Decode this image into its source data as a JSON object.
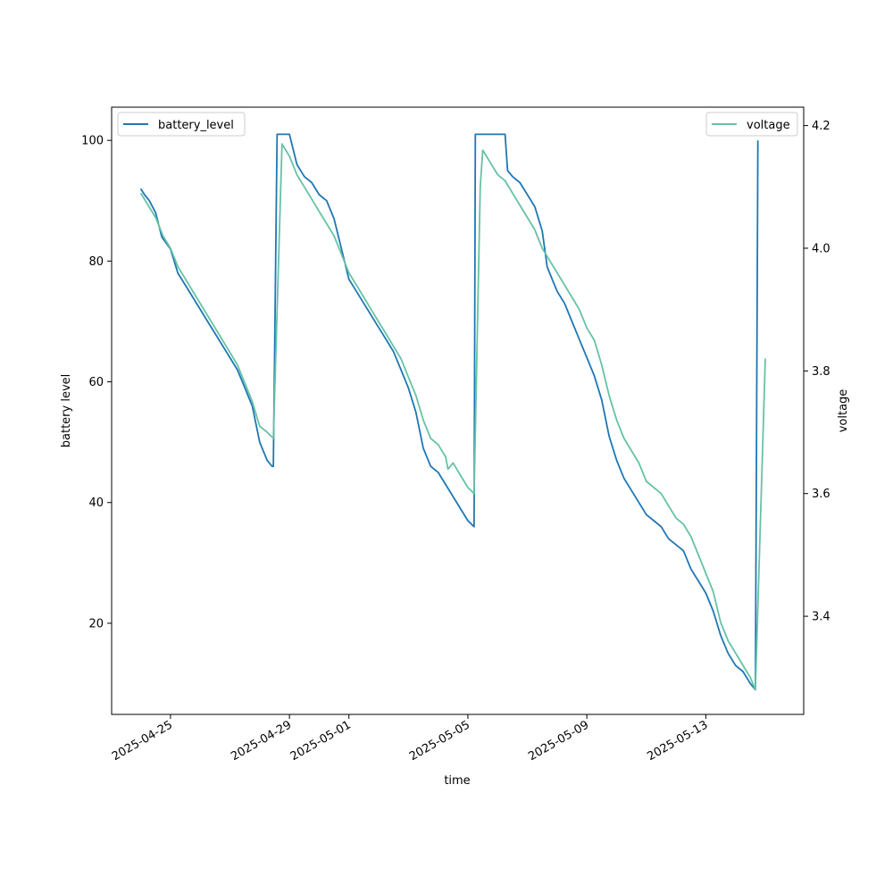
{
  "chart_data": {
    "type": "line",
    "x_axis": {
      "label": "time",
      "ticks": [
        "2025-04-25",
        "2025-04-29",
        "2025-05-01",
        "2025-05-05",
        "2025-05-09",
        "2025-05-13"
      ],
      "range": [
        "2025-04-23T00:30",
        "2025-05-16T07:00"
      ]
    },
    "y_axis_left": {
      "label": "battery level",
      "range": [
        4.9,
        105.5
      ],
      "ticks": [
        20,
        40,
        60,
        80,
        100
      ]
    },
    "y_axis_right": {
      "label": "voltage",
      "range": [
        3.24,
        4.23
      ],
      "ticks": [
        3.4,
        3.6,
        3.8,
        4.0,
        4.2
      ]
    },
    "legend": [
      {
        "label": "battery_level",
        "placement": "upper left",
        "color": "#1f77b4"
      },
      {
        "label": "voltage",
        "placement": "upper right",
        "color": "#66c2a5"
      }
    ],
    "grid": false,
    "series": [
      {
        "name": "battery_level",
        "axis": "left",
        "color": "#1f77b4",
        "points": [
          [
            "2025-04-24T00:00",
            92
          ],
          [
            "2025-04-24T03:00",
            91
          ],
          [
            "2025-04-24T07:00",
            90
          ],
          [
            "2025-04-24T12:00",
            88
          ],
          [
            "2025-04-24T17:00",
            84
          ],
          [
            "2025-04-25T00:00",
            82
          ],
          [
            "2025-04-25T06:00",
            78
          ],
          [
            "2025-04-25T12:00",
            76
          ],
          [
            "2025-04-25T18:00",
            74
          ],
          [
            "2025-04-26T00:00",
            72
          ],
          [
            "2025-04-26T06:00",
            70
          ],
          [
            "2025-04-26T12:00",
            68
          ],
          [
            "2025-04-26T18:00",
            66
          ],
          [
            "2025-04-27T00:00",
            64
          ],
          [
            "2025-04-27T06:00",
            62
          ],
          [
            "2025-04-27T12:00",
            59
          ],
          [
            "2025-04-27T18:00",
            56
          ],
          [
            "2025-04-28T00:00",
            50
          ],
          [
            "2025-04-28T06:00",
            47
          ],
          [
            "2025-04-28T10:00",
            46
          ],
          [
            "2025-04-28T11:00",
            46
          ],
          [
            "2025-04-28T14:00",
            101
          ],
          [
            "2025-04-28T17:00",
            101
          ],
          [
            "2025-04-29T00:00",
            101
          ],
          [
            "2025-04-29T06:00",
            96
          ],
          [
            "2025-04-29T12:00",
            94
          ],
          [
            "2025-04-29T18:00",
            93
          ],
          [
            "2025-04-30T00:00",
            91
          ],
          [
            "2025-04-30T06:00",
            90
          ],
          [
            "2025-04-30T12:00",
            87
          ],
          [
            "2025-04-30T18:00",
            82
          ],
          [
            "2025-05-01T00:00",
            77
          ],
          [
            "2025-05-01T06:00",
            75
          ],
          [
            "2025-05-01T12:00",
            73
          ],
          [
            "2025-05-01T18:00",
            71
          ],
          [
            "2025-05-02T00:00",
            69
          ],
          [
            "2025-05-02T06:00",
            67
          ],
          [
            "2025-05-02T12:00",
            65
          ],
          [
            "2025-05-02T18:00",
            62
          ],
          [
            "2025-05-03T00:00",
            59
          ],
          [
            "2025-05-03T06:00",
            55
          ],
          [
            "2025-05-03T12:00",
            49
          ],
          [
            "2025-05-03T18:00",
            46
          ],
          [
            "2025-05-04T00:00",
            45
          ],
          [
            "2025-05-04T06:00",
            43
          ],
          [
            "2025-05-04T12:00",
            41
          ],
          [
            "2025-05-04T18:00",
            39
          ],
          [
            "2025-05-05T00:00",
            37
          ],
          [
            "2025-05-05T05:00",
            36
          ],
          [
            "2025-05-05T06:00",
            101
          ],
          [
            "2025-05-05T18:00",
            101
          ],
          [
            "2025-05-06T06:00",
            101
          ],
          [
            "2025-05-06T08:00",
            95
          ],
          [
            "2025-05-06T12:00",
            94
          ],
          [
            "2025-05-06T18:00",
            93
          ],
          [
            "2025-05-07T00:00",
            91
          ],
          [
            "2025-05-07T06:00",
            89
          ],
          [
            "2025-05-07T12:00",
            85
          ],
          [
            "2025-05-07T16:00",
            79
          ],
          [
            "2025-05-07T20:00",
            77
          ],
          [
            "2025-05-08T00:00",
            75
          ],
          [
            "2025-05-08T06:00",
            73
          ],
          [
            "2025-05-08T12:00",
            70
          ],
          [
            "2025-05-08T18:00",
            67
          ],
          [
            "2025-05-09T00:00",
            64
          ],
          [
            "2025-05-09T06:00",
            61
          ],
          [
            "2025-05-09T12:00",
            57
          ],
          [
            "2025-05-09T18:00",
            51
          ],
          [
            "2025-05-10T00:00",
            47
          ],
          [
            "2025-05-10T06:00",
            44
          ],
          [
            "2025-05-10T12:00",
            42
          ],
          [
            "2025-05-10T18:00",
            40
          ],
          [
            "2025-05-11T00:00",
            38
          ],
          [
            "2025-05-11T06:00",
            37
          ],
          [
            "2025-05-11T12:00",
            36
          ],
          [
            "2025-05-11T18:00",
            34
          ],
          [
            "2025-05-12T00:00",
            33
          ],
          [
            "2025-05-12T06:00",
            32
          ],
          [
            "2025-05-12T12:00",
            29
          ],
          [
            "2025-05-12T18:00",
            27
          ],
          [
            "2025-05-13T00:00",
            25
          ],
          [
            "2025-05-13T06:00",
            22
          ],
          [
            "2025-05-13T12:00",
            18
          ],
          [
            "2025-05-13T18:00",
            15
          ],
          [
            "2025-05-14T00:00",
            13
          ],
          [
            "2025-05-14T06:00",
            12
          ],
          [
            "2025-05-14T12:00",
            10
          ],
          [
            "2025-05-14T16:00",
            9
          ],
          [
            "2025-05-14T18:00",
            100
          ]
        ]
      },
      {
        "name": "voltage",
        "axis": "right",
        "color": "#66c2a5",
        "points": [
          [
            "2025-04-24T00:00",
            4.09
          ],
          [
            "2025-04-24T06:00",
            4.07
          ],
          [
            "2025-04-24T12:00",
            4.05
          ],
          [
            "2025-04-24T18:00",
            4.02
          ],
          [
            "2025-04-25T00:00",
            4.0
          ],
          [
            "2025-04-25T06:00",
            3.97
          ],
          [
            "2025-04-25T12:00",
            3.95
          ],
          [
            "2025-04-25T18:00",
            3.93
          ],
          [
            "2025-04-26T00:00",
            3.91
          ],
          [
            "2025-04-26T06:00",
            3.89
          ],
          [
            "2025-04-26T12:00",
            3.87
          ],
          [
            "2025-04-26T18:00",
            3.85
          ],
          [
            "2025-04-27T00:00",
            3.83
          ],
          [
            "2025-04-27T06:00",
            3.81
          ],
          [
            "2025-04-27T12:00",
            3.78
          ],
          [
            "2025-04-27T18:00",
            3.75
          ],
          [
            "2025-04-28T00:00",
            3.71
          ],
          [
            "2025-04-28T06:00",
            3.7
          ],
          [
            "2025-04-28T11:00",
            3.69
          ],
          [
            "2025-04-28T18:00",
            4.17
          ],
          [
            "2025-04-29T00:00",
            4.15
          ],
          [
            "2025-04-29T06:00",
            4.12
          ],
          [
            "2025-04-29T12:00",
            4.1
          ],
          [
            "2025-04-29T18:00",
            4.08
          ],
          [
            "2025-04-30T00:00",
            4.06
          ],
          [
            "2025-04-30T06:00",
            4.04
          ],
          [
            "2025-04-30T12:00",
            4.02
          ],
          [
            "2025-04-30T18:00",
            3.99
          ],
          [
            "2025-05-01T00:00",
            3.96
          ],
          [
            "2025-05-01T06:00",
            3.94
          ],
          [
            "2025-05-01T12:00",
            3.92
          ],
          [
            "2025-05-01T18:00",
            3.9
          ],
          [
            "2025-05-02T00:00",
            3.88
          ],
          [
            "2025-05-02T06:00",
            3.86
          ],
          [
            "2025-05-02T12:00",
            3.84
          ],
          [
            "2025-05-02T18:00",
            3.82
          ],
          [
            "2025-05-03T00:00",
            3.79
          ],
          [
            "2025-05-03T06:00",
            3.76
          ],
          [
            "2025-05-03T12:00",
            3.72
          ],
          [
            "2025-05-03T18:00",
            3.69
          ],
          [
            "2025-05-04T00:00",
            3.68
          ],
          [
            "2025-05-04T06:00",
            3.66
          ],
          [
            "2025-05-04T08:00",
            3.64
          ],
          [
            "2025-05-04T12:00",
            3.65
          ],
          [
            "2025-05-04T18:00",
            3.63
          ],
          [
            "2025-05-05T00:00",
            3.61
          ],
          [
            "2025-05-05T05:00",
            3.6
          ],
          [
            "2025-05-05T10:00",
            4.1
          ],
          [
            "2025-05-05T12:00",
            4.16
          ],
          [
            "2025-05-05T18:00",
            4.14
          ],
          [
            "2025-05-06T00:00",
            4.12
          ],
          [
            "2025-05-06T06:00",
            4.11
          ],
          [
            "2025-05-06T12:00",
            4.09
          ],
          [
            "2025-05-06T18:00",
            4.07
          ],
          [
            "2025-05-07T00:00",
            4.05
          ],
          [
            "2025-05-07T06:00",
            4.03
          ],
          [
            "2025-05-07T12:00",
            4.0
          ],
          [
            "2025-05-07T18:00",
            3.98
          ],
          [
            "2025-05-08T00:00",
            3.96
          ],
          [
            "2025-05-08T06:00",
            3.94
          ],
          [
            "2025-05-08T12:00",
            3.92
          ],
          [
            "2025-05-08T18:00",
            3.9
          ],
          [
            "2025-05-09T00:00",
            3.87
          ],
          [
            "2025-05-09T06:00",
            3.85
          ],
          [
            "2025-05-09T12:00",
            3.81
          ],
          [
            "2025-05-09T18:00",
            3.76
          ],
          [
            "2025-05-10T00:00",
            3.72
          ],
          [
            "2025-05-10T06:00",
            3.69
          ],
          [
            "2025-05-10T12:00",
            3.67
          ],
          [
            "2025-05-10T18:00",
            3.65
          ],
          [
            "2025-05-11T00:00",
            3.62
          ],
          [
            "2025-05-11T06:00",
            3.61
          ],
          [
            "2025-05-11T12:00",
            3.6
          ],
          [
            "2025-05-11T18:00",
            3.58
          ],
          [
            "2025-05-12T00:00",
            3.56
          ],
          [
            "2025-05-12T06:00",
            3.55
          ],
          [
            "2025-05-12T12:00",
            3.53
          ],
          [
            "2025-05-12T18:00",
            3.5
          ],
          [
            "2025-05-13T00:00",
            3.47
          ],
          [
            "2025-05-13T06:00",
            3.44
          ],
          [
            "2025-05-13T12:00",
            3.39
          ],
          [
            "2025-05-13T18:00",
            3.36
          ],
          [
            "2025-05-14T00:00",
            3.34
          ],
          [
            "2025-05-14T06:00",
            3.32
          ],
          [
            "2025-05-14T12:00",
            3.3
          ],
          [
            "2025-05-14T16:00",
            3.28
          ],
          [
            "2025-05-15T00:00",
            3.82
          ]
        ]
      }
    ]
  }
}
